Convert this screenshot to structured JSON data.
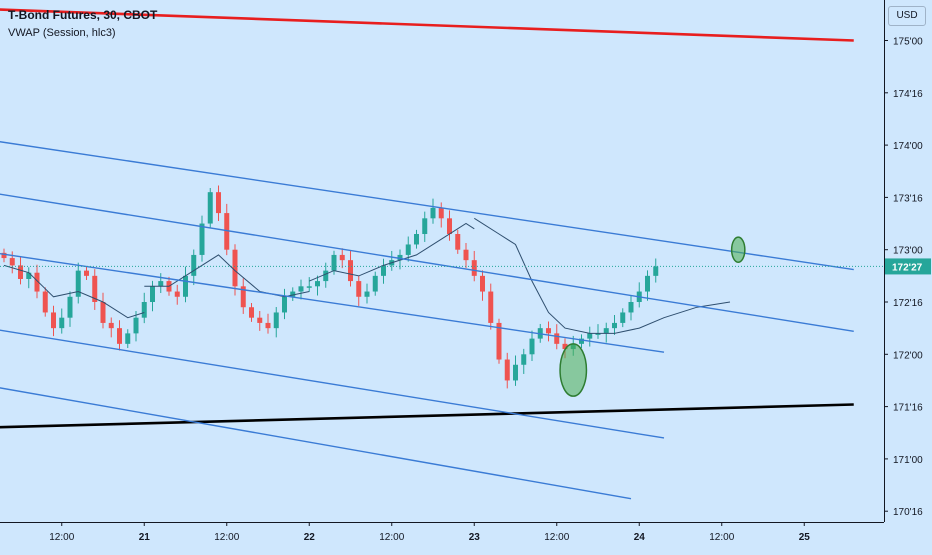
{
  "header": {
    "symbol_line": "T-Bond Futures, 30, CBOT",
    "indicator_line": "VWAP (Session, hlc3)",
    "currency": "USD"
  },
  "colors": {
    "background": "#cfe7fd",
    "up_candle": "#26a69a",
    "down_candle": "#ef5350",
    "channel_line": "#3a7bd5",
    "resistance_line": "#e81e1e",
    "support_line": "#000000",
    "vwap_line": "#2f4f6f",
    "current_price_tag": "#26a69a",
    "highlight_ellipse": "#4caf50"
  },
  "chart_data": {
    "type": "candlestick",
    "title": "T-Bond Futures, 30, CBOT",
    "y_tick_labels": [
      "175'00",
      "174'16",
      "174'00",
      "173'16",
      "173'00",
      "172'16",
      "172'00",
      "171'16",
      "171'00",
      "170'16"
    ],
    "y_tick_values": [
      175.0,
      174.5,
      174.0,
      173.5,
      173.0,
      172.5,
      172.0,
      171.5,
      171.0,
      170.5
    ],
    "x_tick_labels": [
      "12:00",
      "21",
      "12:00",
      "22",
      "12:00",
      "23",
      "12:00",
      "24",
      "12:00",
      "25"
    ],
    "x_tick_bar_index": [
      7,
      17,
      27,
      37,
      47,
      57,
      67,
      77,
      87,
      97
    ],
    "ylim": [
      170.4,
      175.2
    ],
    "current_price_label": "172'27",
    "current_price": 172.84,
    "closes": [
      172.92,
      172.85,
      172.72,
      172.78,
      172.6,
      172.4,
      172.25,
      172.35,
      172.55,
      172.8,
      172.75,
      172.5,
      172.3,
      172.25,
      172.1,
      172.2,
      172.35,
      172.5,
      172.65,
      172.7,
      172.6,
      172.55,
      172.75,
      172.95,
      173.25,
      173.55,
      173.35,
      173.0,
      172.65,
      172.45,
      172.35,
      172.3,
      172.25,
      172.4,
      172.55,
      172.6,
      172.65,
      172.65,
      172.7,
      172.8,
      172.95,
      172.9,
      172.7,
      172.55,
      172.6,
      172.75,
      172.85,
      172.9,
      172.95,
      173.05,
      173.15,
      173.3,
      173.4,
      173.3,
      173.15,
      173.0,
      172.9,
      172.75,
      172.6,
      172.3,
      171.95,
      171.75,
      171.9,
      172.0,
      172.15,
      172.25,
      172.2,
      172.1,
      172.05,
      172.1,
      172.15,
      172.2,
      172.2,
      172.25,
      172.3,
      172.4,
      172.5,
      172.6,
      172.75,
      172.84
    ],
    "vwap_sessions": [
      {
        "points": [
          [
            0,
            172.85
          ],
          [
            3,
            172.78
          ],
          [
            6,
            172.55
          ],
          [
            9,
            172.6
          ],
          [
            12,
            172.5
          ],
          [
            15,
            172.35
          ],
          [
            17,
            172.4
          ]
        ]
      },
      {
        "points": [
          [
            17,
            172.65
          ],
          [
            20,
            172.65
          ],
          [
            23,
            172.8
          ],
          [
            26,
            172.95
          ],
          [
            28,
            172.8
          ],
          [
            31,
            172.6
          ],
          [
            34,
            172.55
          ],
          [
            37,
            172.6
          ]
        ]
      },
      {
        "points": [
          [
            37,
            172.7
          ],
          [
            40,
            172.8
          ],
          [
            43,
            172.75
          ],
          [
            46,
            172.85
          ],
          [
            50,
            172.95
          ],
          [
            53,
            173.1
          ],
          [
            56,
            173.25
          ],
          [
            57,
            173.2
          ]
        ]
      },
      {
        "points": [
          [
            57,
            173.3
          ],
          [
            60,
            173.15
          ],
          [
            62,
            173.05
          ],
          [
            64,
            172.7
          ],
          [
            66,
            172.4
          ],
          [
            68,
            172.25
          ],
          [
            71,
            172.2
          ],
          [
            74,
            172.2
          ],
          [
            77,
            172.25
          ],
          [
            80,
            172.35
          ],
          [
            84,
            172.45
          ],
          [
            88,
            172.5
          ]
        ]
      }
    ],
    "trend_lines": [
      {
        "kind": "resistance",
        "from": [
          -2,
          175.3
        ],
        "to": [
          103,
          175.0
        ]
      },
      {
        "kind": "support",
        "from": [
          -2,
          171.3
        ],
        "to": [
          103,
          171.52
        ]
      },
      {
        "kind": "channel",
        "from": [
          -2,
          174.05
        ],
        "to": [
          103,
          172.81
        ]
      },
      {
        "kind": "channel",
        "from": [
          -2,
          173.55
        ],
        "to": [
          103,
          172.22
        ]
      },
      {
        "kind": "channel",
        "from": [
          -2,
          172.98
        ],
        "to": [
          80,
          172.02
        ]
      },
      {
        "kind": "channel",
        "from": [
          -2,
          172.25
        ],
        "to": [
          80,
          171.2
        ]
      },
      {
        "kind": "channel",
        "from": [
          -2,
          171.7
        ],
        "to": [
          76,
          170.62
        ]
      }
    ],
    "highlights": [
      {
        "center": [
          69,
          171.85
        ],
        "rx_bars": 1.6,
        "ry_price": 0.25
      },
      {
        "center": [
          89,
          173.0
        ],
        "rx_bars": 0.8,
        "ry_price": 0.12
      }
    ]
  }
}
